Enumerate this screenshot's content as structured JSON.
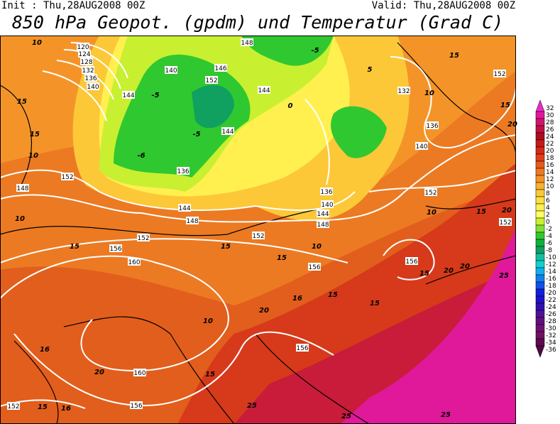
{
  "header": {
    "init": "Init : Thu,28AUG2008 00Z",
    "valid": "Valid: Thu,28AUG2008 00Z",
    "title": "850 hPa Geopot. (gpdm) und Temperatur (Grad C)"
  },
  "colorbar": {
    "levels": [
      32,
      30,
      28,
      26,
      24,
      22,
      20,
      18,
      16,
      14,
      12,
      10,
      8,
      6,
      4,
      2,
      0,
      -2,
      -4,
      -6,
      -8,
      -10,
      -12,
      -14,
      -16,
      -18,
      -20,
      -22,
      -24,
      -26,
      -28,
      -30,
      -32,
      -34,
      -36
    ],
    "colors": [
      "#f028c8",
      "#e0189a",
      "#d01470",
      "#c01040",
      "#b00a20",
      "#c81818",
      "#d82818",
      "#e04018",
      "#e85a1a",
      "#f07820",
      "#f49428",
      "#f8b030",
      "#fcc838",
      "#fde040",
      "#fff050",
      "#ffff60",
      "#c8f030",
      "#80e030",
      "#30c830",
      "#10b040",
      "#10a060",
      "#10c0a0",
      "#10d0d0",
      "#10b0e8",
      "#1080f0",
      "#1050e8",
      "#1020e0",
      "#2010c8",
      "#3010b0",
      "#501098",
      "#601080",
      "#701070",
      "#701060",
      "#600850",
      "#500840"
    ]
  },
  "map": {
    "geopotential_labels": [
      "120",
      "124",
      "128",
      "132",
      "136",
      "140",
      "144",
      "148",
      "152",
      "146",
      "140",
      "136",
      "144",
      "132",
      "136",
      "140",
      "152",
      "148",
      "144",
      "148",
      "136",
      "140",
      "144",
      "148",
      "152",
      "152",
      "156",
      "160",
      "156",
      "156",
      "152",
      "152",
      "152",
      "156",
      "160",
      "156",
      "152",
      "144"
    ],
    "temperature_labels": [
      "10",
      "15",
      "15",
      "10",
      "10",
      "15",
      "15",
      "10",
      "10",
      "16",
      "15",
      "15",
      "15",
      "20",
      "20",
      "20",
      "15",
      "25",
      "20",
      "15",
      "10",
      "15",
      "10",
      "15",
      "20",
      "16",
      "20",
      "15",
      "15",
      "16",
      "25",
      "25",
      "25",
      "-5",
      "-6",
      "0",
      "5",
      "-5",
      "-5"
    ]
  }
}
